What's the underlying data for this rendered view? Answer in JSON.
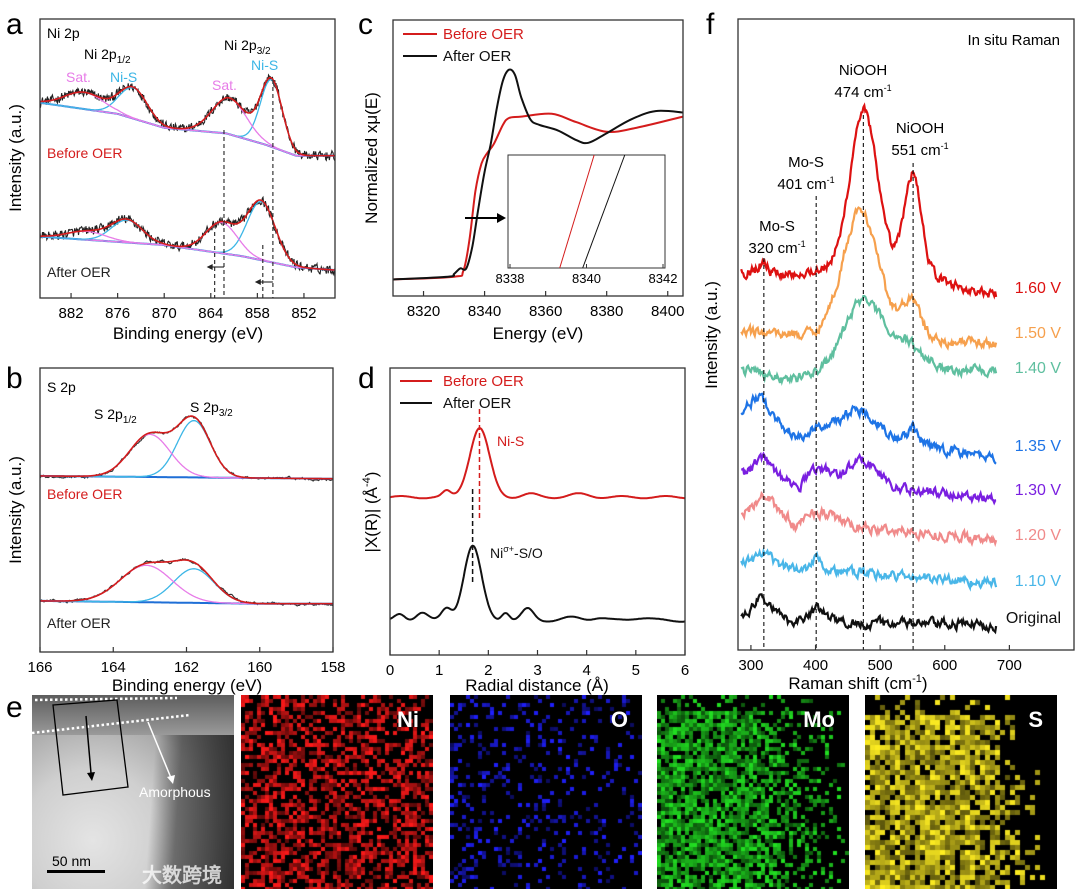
{
  "chart_data": [
    {
      "panel_label": "a",
      "type": "line",
      "title": "Ni 2p",
      "xlabel": "Binding energy (eV)",
      "ylabel": "Intensity (a.u.)",
      "xlim": [
        886,
        848
      ],
      "ylim": [
        0,
        100
      ],
      "xticks": [
        882,
        876,
        870,
        864,
        858,
        852
      ],
      "colors": {
        "raw": "#222222",
        "fit": "#d41c1c",
        "baseline": "#1f6fd6",
        "Ni-S": "#3cb6e6",
        "Sat.": "#e77ce8"
      },
      "annotations": {
        "p12": {
          "main": "Ni 2p",
          "sub": "1/2"
        },
        "p32": {
          "main": "Ni 2p",
          "sub": "3/2"
        },
        "sat": "Sat.",
        "nis": "Ni-S"
      },
      "spectra": [
        {
          "name": "Before OER",
          "color": "#d41c1c",
          "baseline": [
            [
              886,
              70
            ],
            [
              876,
              66
            ],
            [
              870,
              61
            ],
            [
              862,
              59
            ],
            [
              857,
              55
            ],
            [
              853,
              51
            ],
            [
              848,
              51
            ]
          ],
          "components": [
            {
              "label": "Ni-S",
              "center": 856.2,
              "width": 1.4,
              "amp": 24
            },
            {
              "label": "Sat.",
              "center": 861.6,
              "width": 2.2,
              "amp": 13
            },
            {
              "label": "Ni-S",
              "center": 874.0,
              "width": 1.8,
              "amp": 11
            },
            {
              "label": "Sat.",
              "center": 880.3,
              "width": 2.5,
              "amp": 6
            }
          ],
          "markers": [
            862.3,
            856.0
          ]
        },
        {
          "name": "After OER",
          "color": "#222222",
          "baseline": [
            [
              886,
              22
            ],
            [
              870,
              19
            ],
            [
              860,
              15
            ],
            [
              853,
              11
            ],
            [
              848,
              10
            ]
          ],
          "components": [
            {
              "label": "Ni-S",
              "center": 857.5,
              "width": 1.8,
              "amp": 21
            },
            {
              "label": "Sat.",
              "center": 862.6,
              "width": 2.0,
              "amp": 11
            },
            {
              "label": "Ni-S",
              "center": 874.8,
              "width": 2.0,
              "amp": 8
            },
            {
              "label": "Sat.",
              "center": 880.0,
              "width": 2.5,
              "amp": 3
            }
          ],
          "markers": [
            863.5,
            857.3
          ]
        }
      ]
    },
    {
      "panel_label": "b",
      "type": "line",
      "title": "S 2p",
      "xlabel": "Binding energy (eV)",
      "ylabel": "Intensity (a.u.)",
      "xlim": [
        166,
        158
      ],
      "ylim": [
        0,
        100
      ],
      "xticks": [
        166,
        164,
        162,
        160,
        158
      ],
      "colors": {
        "raw": "#333333",
        "fit": "#d41c1c",
        "baseline": "#1f6fd6",
        "S 2p3/2": "#3cb6e6",
        "S 2p1/2": "#e77ce8"
      },
      "annotations": {
        "p12": {
          "main": "S 2p",
          "sub": "1/2"
        },
        "p32": {
          "main": "S 2p",
          "sub": "3/2"
        }
      },
      "spectra": [
        {
          "name": "Before OER",
          "color": "#d41c1c",
          "baseline": [
            [
              166,
              62
            ],
            [
              158,
              61
            ]
          ],
          "components": [
            {
              "label": "S 2p3/2",
              "center": 161.8,
              "width": 0.45,
              "amp": 20
            },
            {
              "label": "S 2p1/2",
              "center": 163.0,
              "width": 0.55,
              "amp": 15
            }
          ]
        },
        {
          "name": "After OER",
          "color": "#222222",
          "baseline": [
            [
              166,
              18
            ],
            [
              160,
              17
            ],
            [
              158,
              17
            ]
          ],
          "components": [
            {
              "label": "S 2p3/2",
              "center": 161.8,
              "width": 0.55,
              "amp": 12
            },
            {
              "label": "S 2p1/2",
              "center": 163.1,
              "width": 0.7,
              "amp": 13
            }
          ]
        }
      ]
    },
    {
      "panel_label": "c",
      "type": "line",
      "xlabel": "Energy (eV)",
      "ylabel": "Normalized xμ(E)",
      "xlim": [
        8310,
        8405
      ],
      "ylim": [
        0,
        100
      ],
      "xticks": [
        8320,
        8340,
        8360,
        8380,
        8400
      ],
      "legend": "top-left",
      "series": [
        {
          "name": "Before OER",
          "color": "#d41c1c",
          "points": [
            [
              8310,
              6
            ],
            [
              8330,
              7
            ],
            [
              8333,
              9
            ],
            [
              8335,
              20
            ],
            [
              8337,
              38
            ],
            [
              8339,
              48
            ],
            [
              8341,
              52
            ],
            [
              8343,
              55
            ],
            [
              8346,
              62
            ],
            [
              8348,
              64.5
            ],
            [
              8352,
              65
            ],
            [
              8362,
              66
            ],
            [
              8370,
              63
            ],
            [
              8380,
              59.5
            ],
            [
              8390,
              61
            ],
            [
              8405,
              65
            ]
          ]
        },
        {
          "name": "After OER",
          "color": "#111111",
          "points": [
            [
              8310,
              6
            ],
            [
              8328,
              7
            ],
            [
              8330,
              8
            ],
            [
              8332,
              10
            ],
            [
              8334,
              10
            ],
            [
              8336,
              18
            ],
            [
              8338,
              32
            ],
            [
              8340,
              45
            ],
            [
              8342,
              55
            ],
            [
              8344,
              68
            ],
            [
              8346,
              78
            ],
            [
              8348,
              82
            ],
            [
              8350,
              80
            ],
            [
              8352,
              72
            ],
            [
              8355,
              64
            ],
            [
              8358,
              62
            ],
            [
              8364,
              60
            ],
            [
              8370,
              56.5
            ],
            [
              8374,
              55.5
            ],
            [
              8380,
              59
            ],
            [
              8388,
              64
            ],
            [
              8396,
              67
            ],
            [
              8405,
              66.5
            ]
          ]
        }
      ],
      "inset": {
        "xlim": [
          8338,
          8342
        ],
        "xticks": [
          8338,
          8340,
          8342
        ],
        "series": [
          {
            "name": "Before OER",
            "color": "#d41c1c",
            "x_bottom": 8339.3,
            "x_top": 8340.2
          },
          {
            "name": "After OER",
            "color": "#111111",
            "x_bottom": 8339.9,
            "x_top": 8341.0
          }
        ]
      }
    },
    {
      "panel_label": "d",
      "type": "line",
      "xlabel": "Radial distance (Å)",
      "ylabel": {
        "main": "|X(R)| (Å",
        "sup": "-4",
        "end": ")"
      },
      "xlim": [
        0,
        6
      ],
      "ylim": [
        0,
        100
      ],
      "xticks": [
        0,
        1,
        2,
        3,
        4,
        5,
        6
      ],
      "legend": "top-left",
      "series": [
        {
          "name": "Before OER",
          "color": "#d41c1c",
          "base": 55,
          "peaks": [
            [
              1.82,
              0.2,
              24
            ],
            [
              1.15,
              0.08,
              2
            ],
            [
              2.85,
              0.15,
              1
            ],
            [
              3.85,
              0.2,
              1
            ]
          ],
          "peak_label": "Ni-S",
          "marker": 1.82
        },
        {
          "name": "After OER",
          "color": "#111111",
          "base": 12,
          "peaks": [
            [
              1.68,
              0.18,
              26
            ],
            [
              1.15,
              0.1,
              4
            ],
            [
              0.65,
              0.12,
              3
            ],
            [
              0.2,
              0.1,
              2
            ],
            [
              2.35,
              0.08,
              3
            ],
            [
              2.8,
              0.12,
              4
            ],
            [
              3.7,
              0.2,
              1
            ],
            [
              4.25,
              0.15,
              1
            ],
            [
              5.1,
              0.2,
              1
            ]
          ],
          "peak_label": {
            "main": "Ni",
            "sup": "σ+",
            "end": "-S/O"
          },
          "marker": 1.68
        }
      ]
    },
    {
      "panel_label": "f",
      "type": "line",
      "title": "In situ Raman",
      "xlabel": {
        "main": "Raman shift (cm",
        "sup": "-1",
        "end": ")"
      },
      "ylabel": "Intensity (a.u.)",
      "xlim": [
        280,
        800
      ],
      "ylim": [
        0,
        100
      ],
      "xticks": [
        300,
        400,
        500,
        600,
        700
      ],
      "data_xrange": [
        285,
        680
      ],
      "annotations": [
        {
          "name": "NiOOH",
          "value": "474 cm",
          "sup": "-1",
          "x": 474
        },
        {
          "name": "NiOOH",
          "value": "551 cm",
          "sup": "-1",
          "x": 551
        },
        {
          "name": "Mo-S",
          "value": "401 cm",
          "sup": "-1",
          "x": 401
        },
        {
          "name": "Mo-S",
          "value": "320 cm",
          "sup": "-1",
          "x": 320
        }
      ],
      "series": [
        {
          "name": "1.60 V",
          "color": "#dd1111",
          "baseline": [
            60,
            56
          ],
          "peaks": [
            [
              474,
              20,
              24
            ],
            [
              551,
              13,
              15
            ],
            [
              505,
              70,
              4
            ],
            [
              318,
              8,
              1.5
            ]
          ]
        },
        {
          "name": "1.50 V",
          "color": "#f6a04d",
          "baseline": [
            50.5,
            48.5
          ],
          "peaks": [
            [
              470,
              28,
              20
            ],
            [
              548,
              15,
              6
            ]
          ]
        },
        {
          "name": "1.40 V",
          "color": "#5fbf9f",
          "baseline": [
            44.5,
            44.5
          ],
          "peaks": [
            [
              474,
              28,
              11
            ],
            [
              540,
              25,
              4
            ],
            [
              360,
              30,
              -1.5
            ]
          ]
        },
        {
          "name": "1.35 V",
          "color": "#1e74e6",
          "baseline": [
            37,
            30.5
          ],
          "peaks": [
            [
              312,
              14,
              3.5
            ],
            [
              470,
              30,
              4
            ],
            [
              551,
              8,
              2.5
            ],
            [
              372,
              12,
              -2
            ]
          ]
        },
        {
          "name": "1.30 V",
          "color": "#7a1fe0",
          "baseline": [
            28,
            24
          ],
          "peaks": [
            [
              318,
              12,
              3
            ],
            [
              474,
              22,
              4
            ],
            [
              405,
              20,
              2
            ],
            [
              372,
              10,
              -2
            ]
          ]
        },
        {
          "name": "1.20 V",
          "color": "#f08a8a",
          "baseline": [
            21,
            17.5
          ],
          "peaks": [
            [
              320,
              18,
              3.5
            ],
            [
              405,
              25,
              2
            ],
            [
              372,
              8,
              -1.5
            ]
          ]
        },
        {
          "name": "1.10 V",
          "color": "#49b6e8",
          "baseline": [
            13.6,
            10.6
          ],
          "peaks": [
            [
              318,
              14,
              1.8
            ],
            [
              402,
              8,
              2.2
            ]
          ]
        },
        {
          "name": "Original",
          "color": "#111111",
          "baseline": [
            4.6,
            4.0
          ],
          "peaks": [
            [
              318,
              16,
              3.5
            ],
            [
              402,
              14,
              2
            ]
          ]
        }
      ]
    }
  ],
  "panel_e": {
    "panel_label": "e",
    "tem": {
      "annotation": "Amorphous",
      "scale_bar": "50 nm"
    },
    "maps": [
      {
        "element": "Ni",
        "color": "#ff1a1a"
      },
      {
        "element": "O",
        "color": "#2020ff"
      },
      {
        "element": "Mo",
        "color": "#22e022"
      },
      {
        "element": "S",
        "color": "#ffee22"
      }
    ]
  },
  "watermark": "大数跨境"
}
